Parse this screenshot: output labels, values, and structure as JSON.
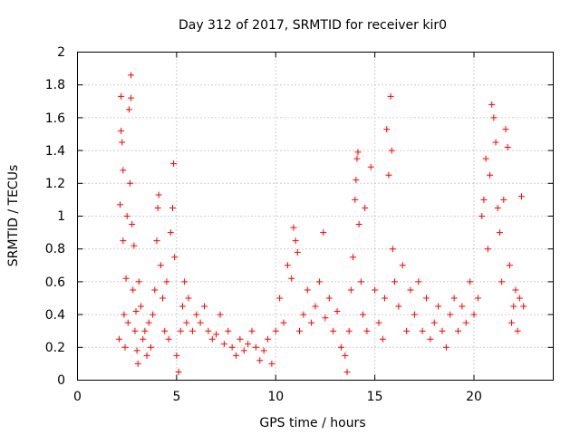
{
  "chart_data": {
    "type": "scatter",
    "title": "Day 312 of 2017, SRMTID for receiver kir0",
    "xlabel": "GPS time / hours",
    "ylabel": "SRMTID / TECUs",
    "xlim": [
      0,
      24
    ],
    "ylim": [
      0,
      2
    ],
    "xticks": [
      0,
      5,
      10,
      15,
      20
    ],
    "xtick_labels": [
      "0",
      "5",
      "10",
      "15",
      "20"
    ],
    "yticks": [
      0,
      0.2,
      0.4,
      0.6,
      0.8,
      1,
      1.2,
      1.4,
      1.6,
      1.8,
      2
    ],
    "ytick_labels": [
      "0",
      "0.2",
      "0.4",
      "0.6",
      "0.8",
      "1",
      "1.2",
      "1.4",
      "1.6",
      "1.8",
      "2"
    ],
    "grid": true,
    "marker": "+",
    "color": "#ff0000",
    "series": [
      {
        "name": "SRMTID",
        "points": [
          [
            2.1,
            0.25
          ],
          [
            2.15,
            1.07
          ],
          [
            2.2,
            1.73
          ],
          [
            2.2,
            1.52
          ],
          [
            2.25,
            1.45
          ],
          [
            2.3,
            1.28
          ],
          [
            2.3,
            0.85
          ],
          [
            2.35,
            0.4
          ],
          [
            2.4,
            0.2
          ],
          [
            2.45,
            0.62
          ],
          [
            2.5,
            1.0
          ],
          [
            2.55,
            0.35
          ],
          [
            2.6,
            1.65
          ],
          [
            2.65,
            1.2
          ],
          [
            2.7,
            1.86
          ],
          [
            2.7,
            1.72
          ],
          [
            2.75,
            0.95
          ],
          [
            2.8,
            0.55
          ],
          [
            2.85,
            0.82
          ],
          [
            2.9,
            0.3
          ],
          [
            2.95,
            0.42
          ],
          [
            3.0,
            0.18
          ],
          [
            3.05,
            0.1
          ],
          [
            3.1,
            0.6
          ],
          [
            3.2,
            0.45
          ],
          [
            3.3,
            0.25
          ],
          [
            3.4,
            0.3
          ],
          [
            3.5,
            0.15
          ],
          [
            3.6,
            0.35
          ],
          [
            3.7,
            0.2
          ],
          [
            3.8,
            0.4
          ],
          [
            3.9,
            0.55
          ],
          [
            4.0,
            0.85
          ],
          [
            4.05,
            1.05
          ],
          [
            4.1,
            1.13
          ],
          [
            4.2,
            0.7
          ],
          [
            4.3,
            0.5
          ],
          [
            4.4,
            0.3
          ],
          [
            4.5,
            0.6
          ],
          [
            4.6,
            0.25
          ],
          [
            4.7,
            0.9
          ],
          [
            4.8,
            1.05
          ],
          [
            4.85,
            1.32
          ],
          [
            4.9,
            0.75
          ],
          [
            5.0,
            0.15
          ],
          [
            5.1,
            0.05
          ],
          [
            5.2,
            0.3
          ],
          [
            5.3,
            0.45
          ],
          [
            5.4,
            0.6
          ],
          [
            5.5,
            0.35
          ],
          [
            5.6,
            0.5
          ],
          [
            5.8,
            0.3
          ],
          [
            6.0,
            0.4
          ],
          [
            6.2,
            0.35
          ],
          [
            6.4,
            0.45
          ],
          [
            6.6,
            0.3
          ],
          [
            6.8,
            0.25
          ],
          [
            7.0,
            0.28
          ],
          [
            7.2,
            0.4
          ],
          [
            7.4,
            0.22
          ],
          [
            7.6,
            0.3
          ],
          [
            7.8,
            0.2
          ],
          [
            8.0,
            0.15
          ],
          [
            8.2,
            0.25
          ],
          [
            8.4,
            0.18
          ],
          [
            8.6,
            0.22
          ],
          [
            8.8,
            0.3
          ],
          [
            9.0,
            0.2
          ],
          [
            9.2,
            0.12
          ],
          [
            9.4,
            0.18
          ],
          [
            9.6,
            0.25
          ],
          [
            9.8,
            0.1
          ],
          [
            10.0,
            0.3
          ],
          [
            10.2,
            0.5
          ],
          [
            10.4,
            0.35
          ],
          [
            10.6,
            0.7
          ],
          [
            10.8,
            0.62
          ],
          [
            10.9,
            0.93
          ],
          [
            11.0,
            0.85
          ],
          [
            11.1,
            0.78
          ],
          [
            11.2,
            0.3
          ],
          [
            11.4,
            0.4
          ],
          [
            11.6,
            0.55
          ],
          [
            11.8,
            0.35
          ],
          [
            12.0,
            0.45
          ],
          [
            12.2,
            0.6
          ],
          [
            12.4,
            0.9
          ],
          [
            12.5,
            0.38
          ],
          [
            12.7,
            0.5
          ],
          [
            12.9,
            0.3
          ],
          [
            13.1,
            0.42
          ],
          [
            13.3,
            0.2
          ],
          [
            13.5,
            0.15
          ],
          [
            13.6,
            0.05
          ],
          [
            13.7,
            0.3
          ],
          [
            13.8,
            0.55
          ],
          [
            13.9,
            0.75
          ],
          [
            14.0,
            1.1
          ],
          [
            14.05,
            1.22
          ],
          [
            14.1,
            1.35
          ],
          [
            14.15,
            1.39
          ],
          [
            14.2,
            0.95
          ],
          [
            14.3,
            0.6
          ],
          [
            14.4,
            0.4
          ],
          [
            14.5,
            1.05
          ],
          [
            14.6,
            0.3
          ],
          [
            14.8,
            1.3
          ],
          [
            15.0,
            0.55
          ],
          [
            15.2,
            0.35
          ],
          [
            15.4,
            0.25
          ],
          [
            15.5,
            0.5
          ],
          [
            15.6,
            1.53
          ],
          [
            15.7,
            1.25
          ],
          [
            15.8,
            1.73
          ],
          [
            15.85,
            1.4
          ],
          [
            15.9,
            0.8
          ],
          [
            16.0,
            0.6
          ],
          [
            16.2,
            0.45
          ],
          [
            16.4,
            0.7
          ],
          [
            16.6,
            0.3
          ],
          [
            16.8,
            0.55
          ],
          [
            17.0,
            0.4
          ],
          [
            17.2,
            0.6
          ],
          [
            17.4,
            0.3
          ],
          [
            17.6,
            0.5
          ],
          [
            17.8,
            0.25
          ],
          [
            18.0,
            0.35
          ],
          [
            18.2,
            0.45
          ],
          [
            18.4,
            0.3
          ],
          [
            18.6,
            0.2
          ],
          [
            18.8,
            0.4
          ],
          [
            19.0,
            0.5
          ],
          [
            19.2,
            0.3
          ],
          [
            19.4,
            0.45
          ],
          [
            19.6,
            0.35
          ],
          [
            19.8,
            0.6
          ],
          [
            20.0,
            0.4
          ],
          [
            20.2,
            0.5
          ],
          [
            20.4,
            1.0
          ],
          [
            20.5,
            1.1
          ],
          [
            20.6,
            1.35
          ],
          [
            20.7,
            0.8
          ],
          [
            20.8,
            1.25
          ],
          [
            20.9,
            1.68
          ],
          [
            21.0,
            1.6
          ],
          [
            21.1,
            1.45
          ],
          [
            21.2,
            1.05
          ],
          [
            21.3,
            0.9
          ],
          [
            21.4,
            0.6
          ],
          [
            21.5,
            1.1
          ],
          [
            21.6,
            1.53
          ],
          [
            21.7,
            1.42
          ],
          [
            21.8,
            0.7
          ],
          [
            21.9,
            0.35
          ],
          [
            22.0,
            0.45
          ],
          [
            22.1,
            0.55
          ],
          [
            22.2,
            0.3
          ],
          [
            22.3,
            0.5
          ],
          [
            22.4,
            1.12
          ],
          [
            22.5,
            0.45
          ]
        ]
      }
    ]
  }
}
